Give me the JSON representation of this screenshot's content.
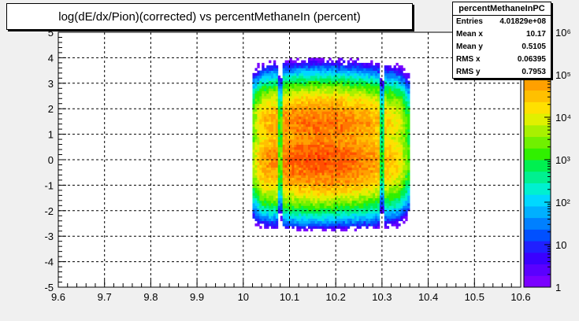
{
  "chart_data": {
    "type": "heatmap",
    "title": "log(dE/dx/Pion)(corrected) vs percentMethaneIn (percent)",
    "xlim": [
      9.6,
      10.6
    ],
    "ylim": [
      -5,
      5
    ],
    "x_ticks": [
      "9.6",
      "9.7",
      "9.8",
      "9.9",
      "10",
      "10.1",
      "10.2",
      "10.3",
      "10.4",
      "10.5",
      "10.6"
    ],
    "y_ticks": [
      "-5",
      "-4",
      "-3",
      "-2",
      "-1",
      "0",
      "1",
      "2",
      "3",
      "4",
      "5"
    ],
    "grid": true,
    "z_log": true,
    "z_range": [
      1,
      1000000
    ],
    "z_ticks": [
      {
        "value": 1,
        "label": "1"
      },
      {
        "value": 10,
        "label": "10"
      },
      {
        "value": 100,
        "label": "10²"
      },
      {
        "value": 1000,
        "label": "10³"
      },
      {
        "value": 10000,
        "label": "10⁴"
      },
      {
        "value": 100000,
        "label": "10⁵"
      },
      {
        "value": 1000000,
        "label": "10⁶"
      }
    ],
    "occupied_x_range": [
      10.02,
      10.36
    ],
    "occupied_y_range": [
      -3.3,
      4.9
    ],
    "peaks": [
      {
        "y": 0.0,
        "log10_counts": 5.3
      },
      {
        "y": 1.4,
        "log10_counts": 5.1
      }
    ],
    "gaps_x": [
      10.08,
      10.3
    ],
    "stats": {
      "name": "percentMethaneInPC",
      "entries_label": "Entries",
      "entries": "4.01829e+08",
      "mean_x_label": "Mean x",
      "mean_x": "10.17",
      "mean_y_label": "Mean y",
      "mean_y": "0.5105",
      "rms_x_label": "RMS x",
      "rms_x": "0.06395",
      "rms_y_label": "RMS y",
      "rms_y": "0.7953"
    }
  }
}
